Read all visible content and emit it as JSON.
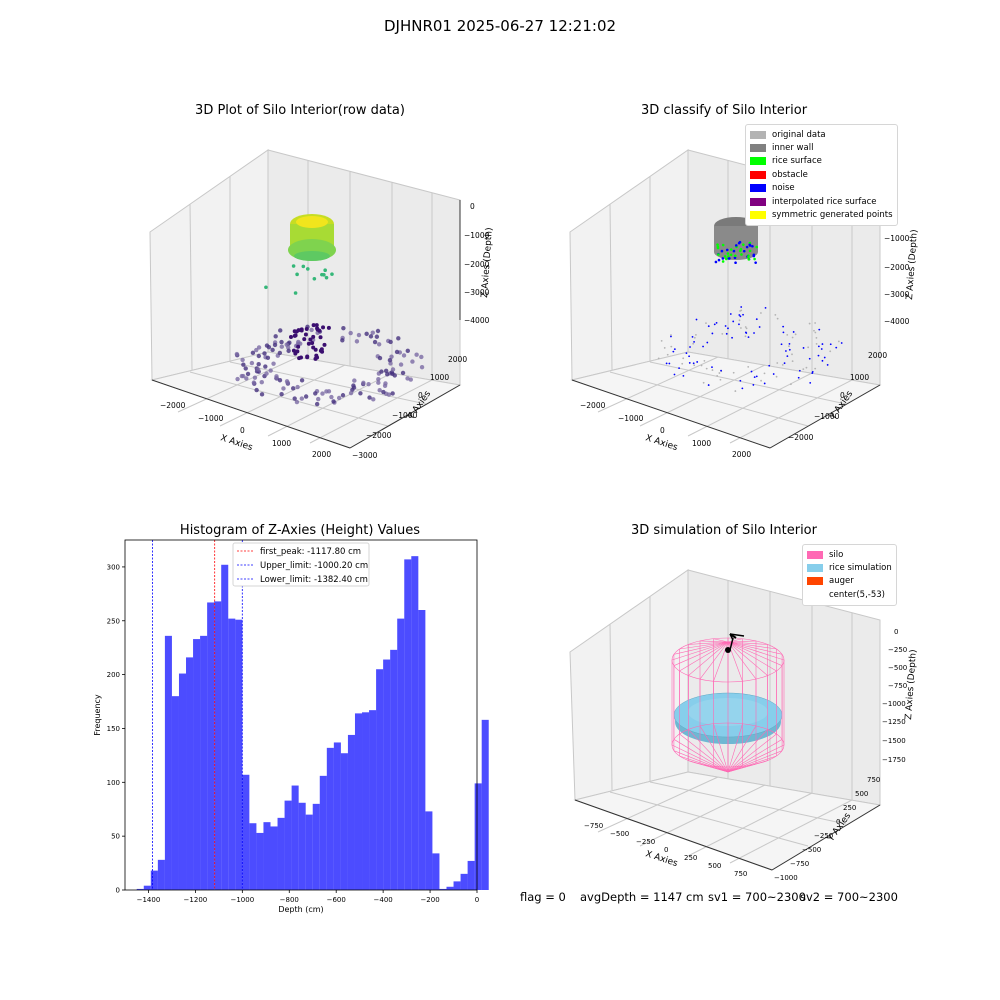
{
  "figure": {
    "title": "DJHNR01 2025-06-27 12:21:02"
  },
  "panels": {
    "raw": {
      "title": "3D Plot of Silo Interior(row data)",
      "xlabel": "X Axies",
      "ylabel": "Y Axies",
      "zlabel": "Z Axies (Depth)",
      "x_ticks": [
        "−2000",
        "−1000",
        "0",
        "1000",
        "2000"
      ],
      "y_ticks": [
        "−3000",
        "−2000",
        "−1000",
        "0",
        "1000",
        "2000"
      ],
      "z_ticks": [
        "0",
        "−1000",
        "−2000",
        "−3000",
        "−4000"
      ]
    },
    "classify": {
      "title": "3D classify of Silo Interior",
      "xlabel": "X Axies",
      "ylabel": "Y Axies",
      "zlabel": "Z Axies (Depth)",
      "x_ticks": [
        "−2000",
        "−1000",
        "0",
        "1000",
        "2000"
      ],
      "y_ticks": [
        "−2000",
        "−1000",
        "0",
        "1000",
        "2000"
      ],
      "z_ticks": [
        "0",
        "−1000",
        "−2000",
        "−3000",
        "−4000"
      ],
      "legend": [
        {
          "label": "original data",
          "color": "#b3b3b3"
        },
        {
          "label": "inner wall",
          "color": "#808080"
        },
        {
          "label": "rice surface",
          "color": "#00ff00"
        },
        {
          "label": "obstacle",
          "color": "#ff0000"
        },
        {
          "label": "noise",
          "color": "#0000ff"
        },
        {
          "label": "interpolated rice surface",
          "color": "#800080"
        },
        {
          "label": "symmetric generated points",
          "color": "#ffff00"
        }
      ]
    },
    "simulation": {
      "title": "3D simulation of Silo Interior",
      "xlabel": "X Axies",
      "ylabel": "Y Axies",
      "zlabel": "Z Axies (Depth)",
      "x_ticks": [
        "−750",
        "−500",
        "−250",
        "0",
        "250",
        "500",
        "750"
      ],
      "y_ticks": [
        "−1000",
        "−750",
        "−500",
        "−250",
        "0",
        "250",
        "500",
        "750"
      ],
      "z_ticks": [
        "0",
        "−250",
        "−500",
        "−750",
        "−1000",
        "−1250",
        "−1500",
        "−1750"
      ],
      "legend": [
        {
          "label": "silo",
          "color": "#ff69b4"
        },
        {
          "label": "rice simulation",
          "color": "#87ceeb"
        },
        {
          "label": "auger",
          "color": "#ff4500"
        },
        {
          "label": "center(5,-53)",
          "color": ""
        }
      ]
    }
  },
  "footer": {
    "flag": "flag = 0",
    "avg": "avgDepth = 1147 cm",
    "sv1": "sv1 = 700~2300",
    "sv2": "sv2 = 700~2300"
  },
  "chart_data": [
    {
      "type": "bar",
      "title": "Histogram of Z-Axies (Height) Values",
      "xlabel": "Depth (cm)",
      "ylabel": "Frequency",
      "xlim": [
        -1500,
        0
      ],
      "ylim": [
        0,
        325
      ],
      "x_ticks": [
        -1400,
        -1200,
        -1000,
        -800,
        -600,
        -400,
        -200,
        0
      ],
      "y_ticks": [
        0,
        50,
        100,
        150,
        200,
        250,
        300
      ],
      "bar_color": "#0000ff",
      "bin_start": -1450,
      "bin_width": 30,
      "values": [
        1,
        4,
        18,
        28,
        236,
        180,
        201,
        216,
        233,
        236,
        267,
        268,
        302,
        252,
        251,
        107,
        62,
        53,
        63,
        59,
        67,
        83,
        97,
        81,
        70,
        80,
        106,
        132,
        137,
        127,
        144,
        164,
        165,
        167,
        205,
        214,
        223,
        252,
        307,
        310,
        260,
        73,
        34,
        1,
        3,
        8,
        15,
        27,
        99,
        158
      ],
      "reference_lines": [
        {
          "label": "first_peak: -1117.80 cm",
          "x": -1117.8,
          "color": "#ff0000"
        },
        {
          "label": "Upper_limit: -1000.20 cm",
          "x": -1000.2,
          "color": "#0000ff"
        },
        {
          "label": "Lower_limit: -1382.40 cm",
          "x": -1382.4,
          "color": "#0000ff"
        }
      ]
    }
  ]
}
